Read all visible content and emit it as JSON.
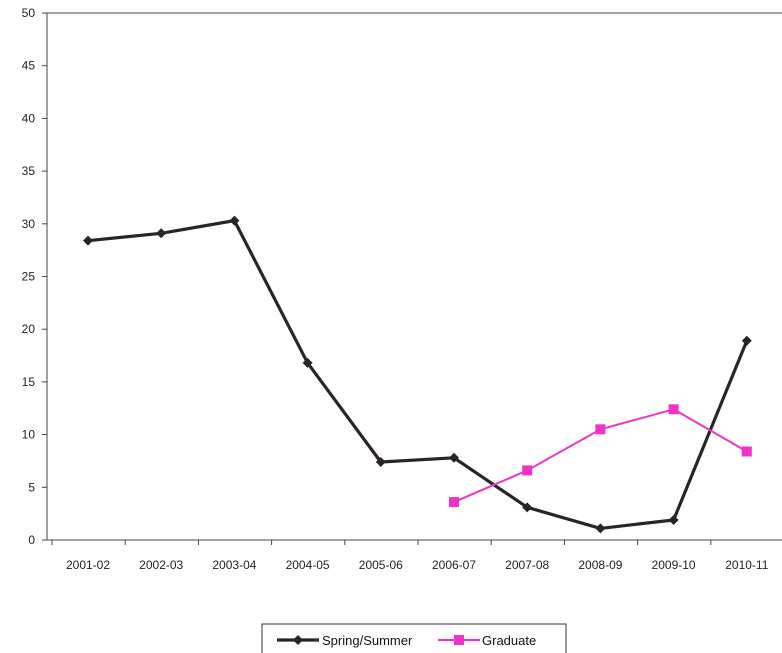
{
  "chart_data": {
    "type": "line",
    "title": "",
    "xlabel": "",
    "ylabel": "",
    "categories": [
      "2001-02",
      "2002-03",
      "2003-04",
      "2004-05",
      "2005-06",
      "2006-07",
      "2007-08",
      "2008-09",
      "2009-10",
      "2010-11"
    ],
    "ylim": [
      0,
      50
    ],
    "yticks": [
      "0",
      "5",
      "10",
      "15",
      "20",
      "25",
      "30",
      "35",
      "40",
      "45",
      "50"
    ],
    "grid": false,
    "legend_position": "bottom",
    "series": [
      {
        "name": "Spring/Summer",
        "color": "#2b2424",
        "marker": "diamond",
        "values": [
          28.4,
          29.1,
          30.3,
          16.8,
          7.4,
          7.8,
          3.1,
          1.1,
          1.9,
          18.9
        ]
      },
      {
        "name": "Graduate",
        "color": "#f032c8",
        "marker": "square",
        "values": [
          null,
          null,
          null,
          null,
          null,
          3.6,
          6.6,
          10.5,
          12.4,
          8.4
        ]
      }
    ]
  }
}
